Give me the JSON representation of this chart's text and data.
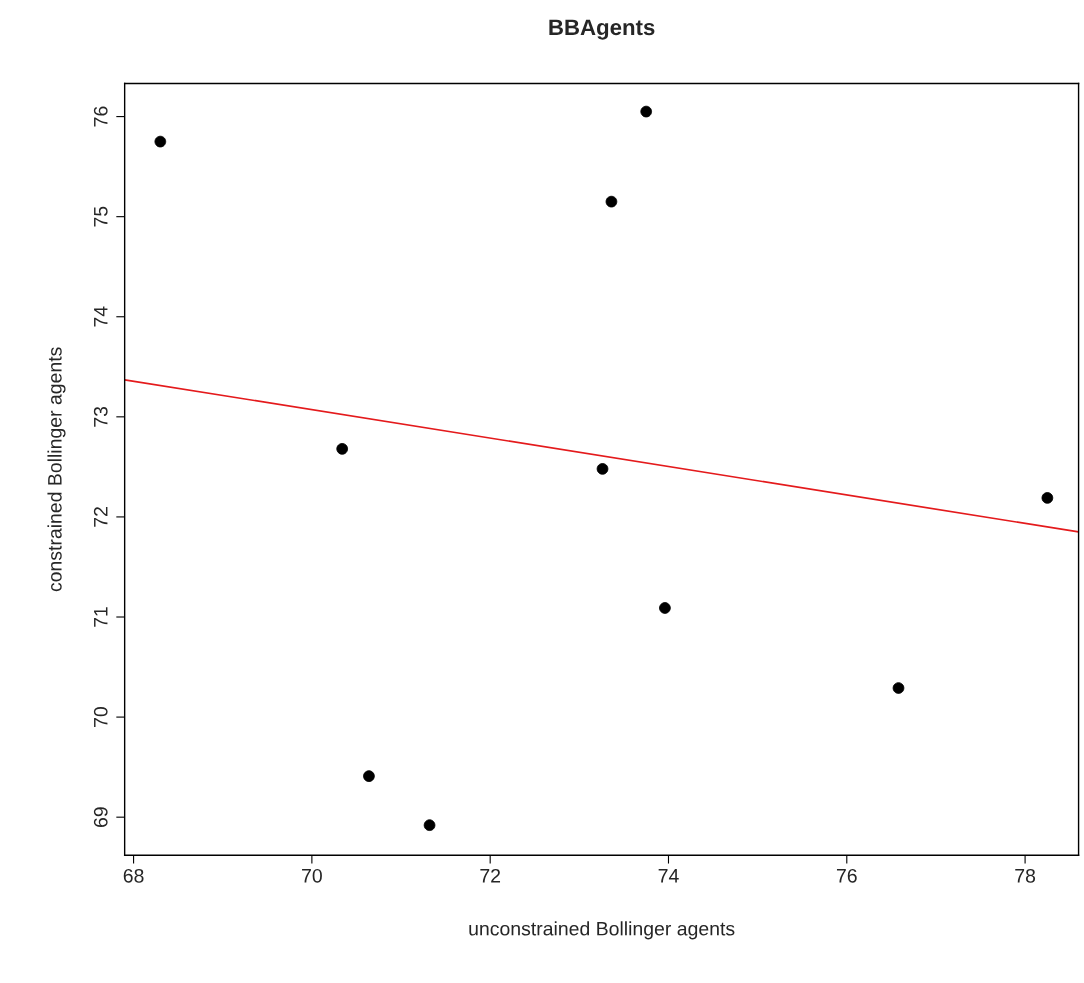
{
  "chart_data": {
    "type": "scatter",
    "title": "BBAgents",
    "xlabel": "unconstrained Bollinger agents",
    "ylabel": "constrained Bollinger agents",
    "xlim": [
      67.9,
      78.6
    ],
    "ylim": [
      68.62,
      76.33
    ],
    "xticks": [
      68,
      70,
      72,
      74,
      76,
      78
    ],
    "yticks": [
      69,
      70,
      71,
      72,
      73,
      74,
      75,
      76
    ],
    "grid": false,
    "legend": false,
    "series": [
      {
        "marker": "circle",
        "color": "#000000",
        "x": [
          68.3,
          73.75,
          73.36,
          70.34,
          73.26,
          78.25,
          73.96,
          76.58,
          70.64,
          71.32
        ],
        "values": [
          75.75,
          76.05,
          75.15,
          72.68,
          72.48,
          72.19,
          71.09,
          70.29,
          69.41,
          68.92
        ]
      },
      {
        "type": "line",
        "color": "#e41a1c",
        "line_style": "solid",
        "marker": "none",
        "x": [
          67.9,
          78.6
        ],
        "values": [
          73.37,
          71.85
        ]
      }
    ]
  }
}
